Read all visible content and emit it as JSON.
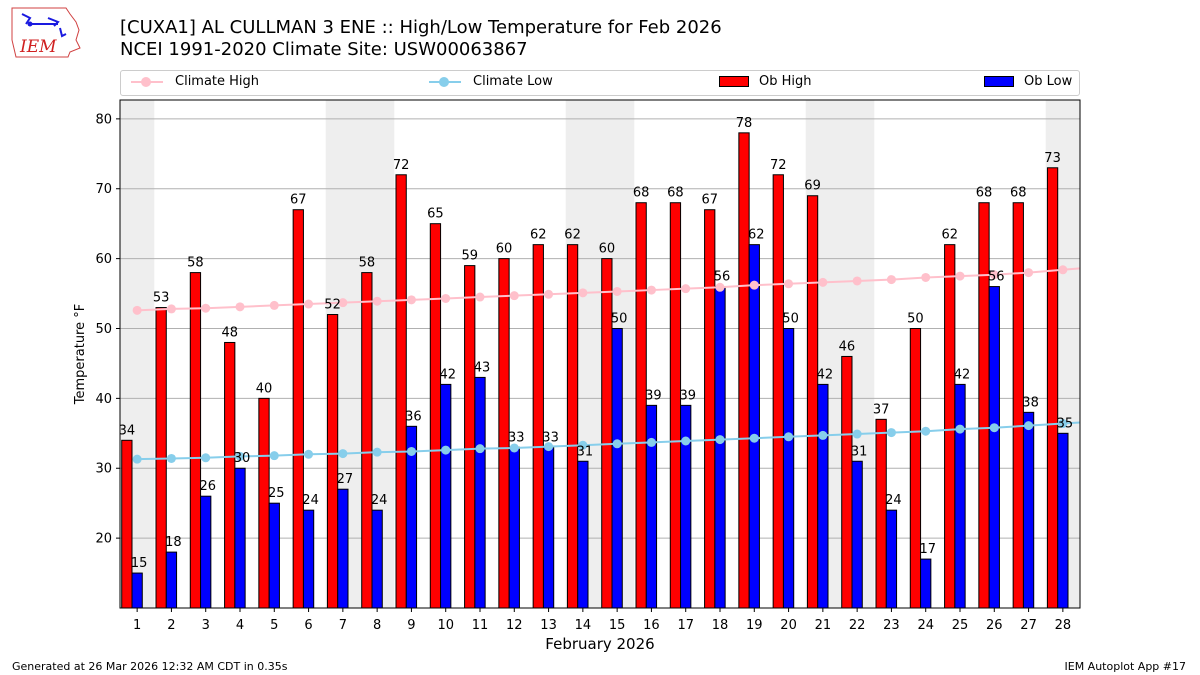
{
  "header": {
    "logo_text": "IEM",
    "title_line1": "[CUXA1] AL CULLMAN 3 ENE :: High/Low Temperature for Feb 2026",
    "title_line2": "NCEI 1991-2020 Climate Site: USW00063867"
  },
  "footer": {
    "generated": "Generated at 26 Mar 2026 12:32 AM CDT in 0.35s",
    "app": "IEM Autoplot App #17"
  },
  "colors": {
    "ob_high": "#ff0000",
    "ob_low": "#0000ff",
    "climate_high": "#ffc0cb",
    "climate_low": "#87ceeb",
    "weekend_shade": "#eeeeee",
    "grid": "#b0b0b0"
  },
  "chart_data": {
    "type": "bar",
    "title": "[CUXA1] AL CULLMAN 3 ENE :: High/Low Temperature for Feb 2026",
    "subtitle": "NCEI 1991-2020 Climate Site: USW00063867",
    "xlabel": "February 2026",
    "ylabel": "Temperature °F",
    "xlim": [
      0.5,
      28.5
    ],
    "ylim": [
      10,
      82.7
    ],
    "yticks": [
      20,
      30,
      40,
      50,
      60,
      70,
      80
    ],
    "grid": true,
    "legend_position": "top",
    "legend": [
      "Climate High",
      "Climate Low",
      "Ob High",
      "Ob Low"
    ],
    "weekend_days": [
      1,
      7,
      8,
      14,
      15,
      21,
      22,
      28
    ],
    "categories": [
      1,
      2,
      3,
      4,
      5,
      6,
      7,
      8,
      9,
      10,
      11,
      12,
      13,
      14,
      15,
      16,
      17,
      18,
      19,
      20,
      21,
      22,
      23,
      24,
      25,
      26,
      27,
      28
    ],
    "series": [
      {
        "name": "Ob High",
        "type": "bar",
        "values": [
          34,
          53,
          58,
          48,
          40,
          67,
          52,
          58,
          72,
          65,
          59,
          60,
          62,
          62,
          60,
          68,
          68,
          67,
          78,
          72,
          69,
          46,
          37,
          50,
          62,
          68,
          68,
          73
        ]
      },
      {
        "name": "Ob Low",
        "type": "bar",
        "values": [
          15,
          18,
          26,
          30,
          25,
          24,
          27,
          24,
          36,
          42,
          43,
          33,
          33,
          31,
          50,
          39,
          39,
          56,
          62,
          50,
          42,
          31,
          24,
          17,
          42,
          56,
          38,
          35
        ]
      },
      {
        "name": "Climate High",
        "type": "line",
        "values": [
          52.6,
          52.8,
          52.9,
          53.1,
          53.3,
          53.5,
          53.7,
          53.9,
          54.1,
          54.3,
          54.5,
          54.7,
          54.9,
          55.1,
          55.3,
          55.5,
          55.7,
          55.9,
          56.2,
          56.4,
          56.6,
          56.8,
          57.0,
          57.3,
          57.5,
          57.7,
          58.0,
          58.4
        ]
      },
      {
        "name": "Climate Low",
        "type": "line",
        "values": [
          31.3,
          31.4,
          31.5,
          31.7,
          31.8,
          32.0,
          32.1,
          32.3,
          32.4,
          32.6,
          32.8,
          32.9,
          33.1,
          33.3,
          33.5,
          33.7,
          33.9,
          34.1,
          34.3,
          34.5,
          34.7,
          34.9,
          35.1,
          35.3,
          35.6,
          35.8,
          36.1,
          36.4
        ]
      }
    ]
  }
}
